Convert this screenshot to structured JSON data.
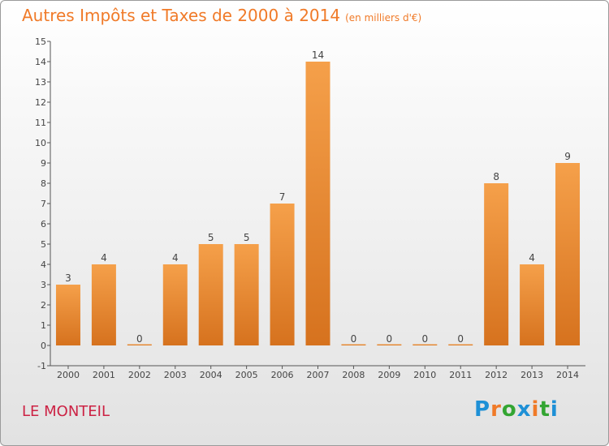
{
  "title": "Autres Impôts et Taxes de 2000 à 2014",
  "unit": "(en milliers d'€)",
  "commune": "LE MONTEIL",
  "logo": {
    "letters": [
      "P",
      "r",
      "o",
      "x",
      "i",
      "t",
      "i"
    ],
    "colors": [
      "#1e90d6",
      "#f07a28",
      "#33a532",
      "#1e90d6",
      "#f07a28",
      "#33a532",
      "#1e90d6"
    ]
  },
  "chart_data": {
    "type": "bar",
    "categories": [
      "2000",
      "2001",
      "2002",
      "2003",
      "2004",
      "2005",
      "2006",
      "2007",
      "2008",
      "2009",
      "2010",
      "2011",
      "2012",
      "2013",
      "2014"
    ],
    "values": [
      3,
      4,
      0,
      4,
      5,
      5,
      7,
      14,
      0,
      0,
      0,
      0,
      8,
      4,
      9
    ],
    "data_labels": [
      "3",
      "4",
      "0",
      "4",
      "5",
      "5",
      "7",
      "14",
      "0",
      "0",
      "0",
      "0",
      "8",
      "4",
      "9"
    ],
    "ylim": [
      -1,
      15
    ],
    "yticks": [
      -1,
      0,
      1,
      2,
      3,
      4,
      5,
      6,
      7,
      8,
      9,
      10,
      11,
      12,
      13,
      14,
      15
    ],
    "ytick_labels": [
      "-1",
      "0",
      "1",
      "2",
      "3",
      "4",
      "5",
      "6",
      "7",
      "8",
      "9",
      "10",
      "11",
      "12",
      "13",
      "14",
      "15"
    ],
    "bar_color": "#f5a04a",
    "bar_color_dark": "#d6721e",
    "grid": false
  }
}
